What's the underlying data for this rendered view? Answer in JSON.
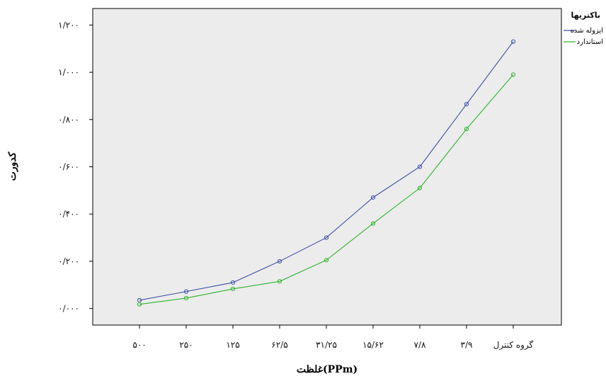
{
  "chart_data": {
    "type": "line",
    "title": "",
    "xlabel": "غلظت(PPm)",
    "ylabel": "کدورت",
    "categories": [
      "۵۰۰",
      "۲۵۰",
      "۱۲۵",
      "۶۲/۵",
      "۳۱/۲۵",
      "۱۵/۶۲",
      "۷/۸",
      "۳/۹",
      "گروه کنترل"
    ],
    "y_tick_labels": [
      "۰/۰۰۰",
      "۰/۲۰۰",
      "۰/۴۰۰",
      "۰/۶۰۰",
      "۰/۸۰۰",
      "۱/۰۰۰",
      "۱/۲۰۰"
    ],
    "y_ticks": [
      0,
      0.2,
      0.4,
      0.6,
      0.8,
      1.0,
      1.2
    ],
    "ylim": [
      -0.07,
      1.27
    ],
    "grid": false,
    "legend_position": "top-right",
    "legend_title": "باکتریها",
    "series": [
      {
        "name": "ایزوله شده",
        "color": "#3a4fa6",
        "values": [
          0.035,
          0.072,
          0.11,
          0.2,
          0.3,
          0.47,
          0.6,
          0.865,
          1.13
        ]
      },
      {
        "name": "استاندارد",
        "color": "#2ab52a",
        "values": [
          0.018,
          0.044,
          0.083,
          0.115,
          0.205,
          0.36,
          0.51,
          0.76,
          0.99
        ]
      }
    ]
  }
}
